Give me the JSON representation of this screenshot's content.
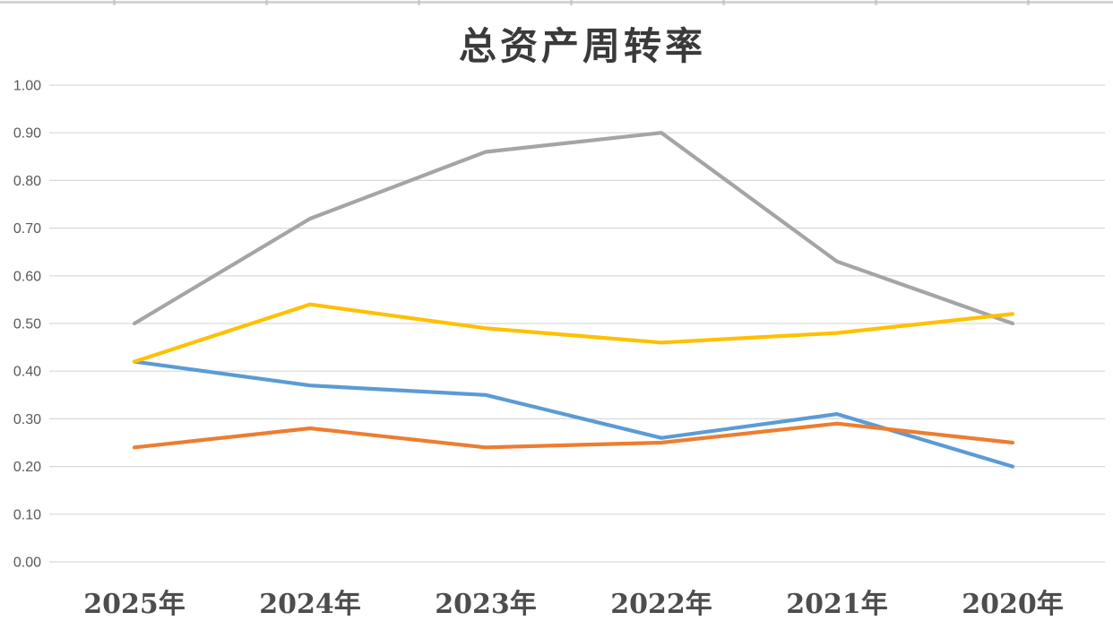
{
  "title": "总资产周转率",
  "chart_data": {
    "type": "line",
    "title": "总资产周转率",
    "categories": [
      "2025年",
      "2024年",
      "2023年",
      "2022年",
      "2021年",
      "2020年"
    ],
    "series": [
      {
        "name": "series-blue",
        "color": "#5B9BD5",
        "values": [
          0.42,
          0.37,
          0.35,
          0.26,
          0.31,
          0.2
        ]
      },
      {
        "name": "series-orange",
        "color": "#ED7D31",
        "values": [
          0.24,
          0.28,
          0.24,
          0.25,
          0.29,
          0.25
        ]
      },
      {
        "name": "series-gray",
        "color": "#A5A5A5",
        "values": [
          0.5,
          0.72,
          0.86,
          0.9,
          0.63,
          0.5
        ]
      },
      {
        "name": "series-yellow",
        "color": "#FFC000",
        "values": [
          0.42,
          0.54,
          0.49,
          0.46,
          0.48,
          0.52
        ]
      }
    ],
    "y_ticks": [
      "1.00",
      "0.90",
      "0.80",
      "0.70",
      "0.60",
      "0.50",
      "0.40",
      "0.30",
      "0.20",
      "0.10",
      "0.00"
    ],
    "ylim": [
      0.0,
      1.0
    ],
    "xlabel": "",
    "ylabel": "",
    "grid": "horizontal",
    "legend": "none"
  },
  "colors": {
    "gridline": "#D9D9D9",
    "axis_label": "#595959",
    "title_text": "#3A3A3A",
    "background": "#FFFFFF"
  }
}
